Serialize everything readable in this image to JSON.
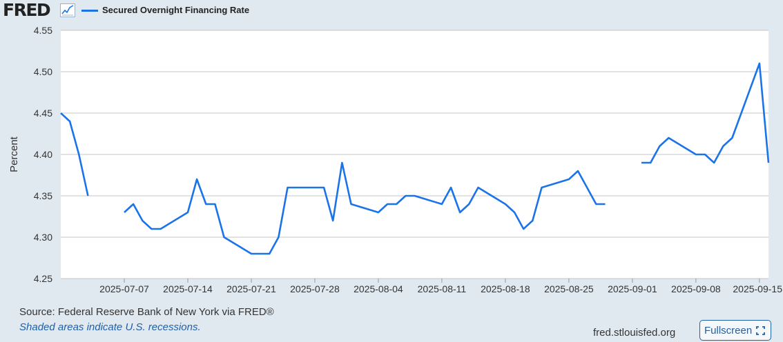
{
  "header": {
    "logo_text": "FRED",
    "logo_icon": "line-graph-icon",
    "legend_label": "Secured Overnight Financing Rate",
    "series_color": "#1a73e8"
  },
  "chart_data": {
    "type": "line",
    "title": "",
    "xlabel": "",
    "ylabel": "Percent",
    "ylim": [
      4.25,
      4.55
    ],
    "y_ticks": [
      "4.25",
      "4.30",
      "4.35",
      "4.40",
      "4.45",
      "4.50",
      "4.55"
    ],
    "x_ticks": [
      "2025-07-07",
      "2025-07-14",
      "2025-07-21",
      "2025-07-28",
      "2025-08-04",
      "2025-08-11",
      "2025-08-18",
      "2025-08-25",
      "2025-09-01",
      "2025-09-08",
      "2025-09-15"
    ],
    "xlim": [
      "2025-06-30",
      "2025-09-16"
    ],
    "grid": true,
    "series": [
      {
        "name": "Secured Overnight Financing Rate",
        "color": "#1a73e8",
        "points": [
          [
            "2025-06-30",
            4.45
          ],
          [
            "2025-07-01",
            4.44
          ],
          [
            "2025-07-02",
            4.4
          ],
          [
            "2025-07-03",
            4.35
          ],
          [
            "2025-07-04",
            null
          ],
          [
            "2025-07-07",
            4.33
          ],
          [
            "2025-07-08",
            4.34
          ],
          [
            "2025-07-09",
            4.32
          ],
          [
            "2025-07-10",
            4.31
          ],
          [
            "2025-07-11",
            4.31
          ],
          [
            "2025-07-14",
            4.33
          ],
          [
            "2025-07-15",
            4.37
          ],
          [
            "2025-07-16",
            4.34
          ],
          [
            "2025-07-17",
            4.34
          ],
          [
            "2025-07-18",
            4.3
          ],
          [
            "2025-07-21",
            4.28
          ],
          [
            "2025-07-22",
            4.28
          ],
          [
            "2025-07-23",
            4.28
          ],
          [
            "2025-07-24",
            4.3
          ],
          [
            "2025-07-25",
            4.36
          ],
          [
            "2025-07-28",
            4.36
          ],
          [
            "2025-07-29",
            4.36
          ],
          [
            "2025-07-30",
            4.32
          ],
          [
            "2025-07-31",
            4.39
          ],
          [
            "2025-08-01",
            4.34
          ],
          [
            "2025-08-04",
            4.33
          ],
          [
            "2025-08-05",
            4.34
          ],
          [
            "2025-08-06",
            4.34
          ],
          [
            "2025-08-07",
            4.35
          ],
          [
            "2025-08-08",
            4.35
          ],
          [
            "2025-08-11",
            4.34
          ],
          [
            "2025-08-12",
            4.36
          ],
          [
            "2025-08-13",
            4.33
          ],
          [
            "2025-08-14",
            4.34
          ],
          [
            "2025-08-15",
            4.36
          ],
          [
            "2025-08-18",
            4.34
          ],
          [
            "2025-08-19",
            4.33
          ],
          [
            "2025-08-20",
            4.31
          ],
          [
            "2025-08-21",
            4.32
          ],
          [
            "2025-08-22",
            4.36
          ],
          [
            "2025-08-25",
            4.37
          ],
          [
            "2025-08-26",
            4.38
          ],
          [
            "2025-08-27",
            4.36
          ],
          [
            "2025-08-28",
            4.34
          ],
          [
            "2025-08-29",
            4.34
          ],
          [
            "2025-09-01",
            null
          ],
          [
            "2025-09-02",
            4.39
          ],
          [
            "2025-09-03",
            4.39
          ],
          [
            "2025-09-04",
            4.41
          ],
          [
            "2025-09-05",
            4.42
          ],
          [
            "2025-09-08",
            4.4
          ],
          [
            "2025-09-09",
            4.4
          ],
          [
            "2025-09-10",
            4.39
          ],
          [
            "2025-09-11",
            4.41
          ],
          [
            "2025-09-12",
            4.42
          ],
          [
            "2025-09-15",
            4.51
          ],
          [
            "2025-09-16",
            4.39
          ]
        ]
      }
    ]
  },
  "footer": {
    "source": "Source: Federal Reserve Bank of New York via FRED®",
    "shaded": "Shaded areas indicate U.S. recessions.",
    "site": "fred.stlouisfed.org",
    "fullscreen_label": "Fullscreen",
    "fullscreen_icon": "expand-icon"
  }
}
